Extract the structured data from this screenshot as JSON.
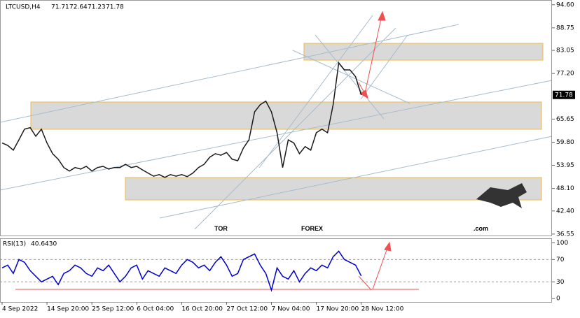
{
  "brand": {
    "part1": "TOR",
    "part2": "FOREX",
    "part3": ".com"
  },
  "chart_data": [
    {
      "type": "line",
      "symbol": "LTCUSD,H4",
      "ohlc": [
        71.71,
        72.64,
        71.23,
        71.78
      ],
      "x": [
        0,
        1,
        2,
        3,
        4,
        5,
        6,
        7,
        8,
        9,
        10,
        11,
        12,
        13,
        14,
        15,
        16,
        17,
        18,
        19,
        20,
        21,
        22,
        23,
        24,
        25,
        26,
        27,
        28,
        29,
        30,
        31,
        32,
        33,
        34,
        35,
        36,
        37,
        38,
        39,
        40,
        41,
        42,
        43,
        44,
        45,
        46,
        47,
        48,
        49,
        50,
        51,
        52,
        53,
        54,
        55,
        56,
        57,
        58,
        59,
        60,
        61,
        62,
        63,
        64
      ],
      "series": [
        {
          "color": "#1a1a1a",
          "values": [
            59.6,
            59.0,
            57.8,
            60.4,
            63.1,
            63.5,
            61.3,
            63.1,
            59.6,
            56.9,
            55.5,
            53.4,
            52.5,
            53.4,
            53.0,
            53.7,
            52.5,
            53.4,
            53.7,
            53.0,
            53.4,
            53.4,
            54.2,
            53.4,
            53.7,
            52.8,
            52.0,
            51.2,
            51.6,
            50.9,
            51.6,
            51.2,
            51.6,
            51.1,
            52.0,
            53.4,
            54.2,
            56.0,
            56.9,
            56.5,
            57.2,
            55.5,
            55.1,
            58.3,
            60.4,
            67.5,
            69.3,
            70.2,
            67.5,
            62.2,
            53.4,
            60.4,
            59.6,
            56.9,
            58.7,
            57.8,
            62.2,
            63.1,
            62.2,
            69.3,
            79.9,
            78.1,
            78.1,
            76.4,
            71.78
          ]
        }
      ],
      "last_price": 71.78,
      "xlim": [
        0,
        98
      ],
      "ylim": [
        36.0,
        95.8
      ],
      "yticks": [
        {
          "value": 94.6,
          "label": "94.60"
        },
        {
          "value": 88.75,
          "label": "88.75"
        },
        {
          "value": 83.05,
          "label": "83.05"
        },
        {
          "value": 77.2,
          "label": "77.20"
        },
        {
          "value": 65.65,
          "label": "65.65"
        },
        {
          "value": 59.8,
          "label": "59.80"
        },
        {
          "value": 53.95,
          "label": "53.95"
        },
        {
          "value": 48.1,
          "label": "48.10"
        },
        {
          "value": 42.4,
          "label": "42.40"
        },
        {
          "value": 36.55,
          "label": "36.55"
        }
      ]
    },
    {
      "type": "line",
      "title": "RSI(13)",
      "last_value": 40.643,
      "last_value_label": "40.6430",
      "series": [
        {
          "color": "#0000cc",
          "values": [
            55,
            60,
            45,
            70,
            65,
            50,
            40,
            30,
            35,
            40,
            25,
            45,
            50,
            60,
            55,
            45,
            40,
            55,
            50,
            60,
            45,
            30,
            40,
            55,
            60,
            35,
            50,
            45,
            40,
            55,
            50,
            45,
            60,
            70,
            65,
            55,
            60,
            50,
            65,
            75,
            60,
            40,
            45,
            70,
            75,
            80,
            60,
            45,
            15,
            55,
            40,
            35,
            50,
            30,
            45,
            55,
            50,
            60,
            55,
            75,
            85,
            70,
            65,
            60,
            40.643
          ]
        }
      ],
      "ylim": [
        -6,
        108
      ],
      "yticks": [
        100,
        70,
        30,
        0
      ],
      "levels": [
        70,
        30
      ],
      "xticks": [
        {
          "value": 0,
          "label": "4 Sep 2022"
        },
        {
          "value": 8,
          "label": "14 Sep 20:00"
        },
        {
          "value": 16,
          "label": "25 Sep 12:00"
        },
        {
          "value": 24,
          "label": "6 Oct 04:00"
        },
        {
          "value": 32,
          "label": "16 Oct 20:00"
        },
        {
          "value": 40,
          "label": "27 Oct 12:00"
        },
        {
          "value": 48,
          "label": "7 Nov 04:00"
        },
        {
          "value": 56,
          "label": "17 Nov 20:00"
        },
        {
          "value": 64,
          "label": "28 Nov 12:00"
        }
      ]
    }
  ]
}
